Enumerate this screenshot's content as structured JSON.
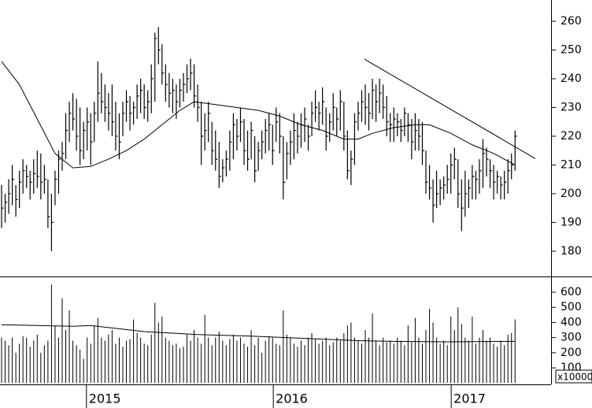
{
  "chart_data": [
    {
      "type": "ohlc",
      "high": [
        203,
        200,
        205,
        210,
        203,
        208,
        212,
        210,
        208,
        212,
        215,
        214,
        210,
        205,
        200,
        208,
        215,
        218,
        228,
        232,
        235,
        233,
        230,
        225,
        230,
        228,
        232,
        246,
        242,
        238,
        235,
        238,
        232,
        228,
        232,
        236,
        234,
        232,
        238,
        240,
        238,
        236,
        245,
        256,
        258,
        252,
        245,
        242,
        240,
        238,
        240,
        242,
        245,
        247,
        245,
        238,
        232,
        228,
        232,
        225,
        222,
        218,
        212,
        215,
        222,
        228,
        226,
        230,
        226,
        222,
        225,
        220,
        218,
        222,
        226,
        228,
        224,
        230,
        228,
        220,
        218,
        222,
        228,
        225,
        228,
        230,
        224,
        232,
        236,
        232,
        237,
        230,
        228,
        235,
        230,
        236,
        232,
        222,
        215,
        228,
        232,
        236,
        238,
        235,
        240,
        238,
        240,
        238,
        234,
        228,
        230,
        228,
        226,
        230,
        228,
        226,
        228,
        226,
        225,
        215,
        210,
        205,
        208,
        205,
        206,
        210,
        214,
        216,
        212,
        205,
        208,
        205,
        210,
        208,
        212,
        219,
        216,
        212,
        210,
        208,
        206,
        208,
        212,
        214,
        222
      ],
      "low": [
        188,
        190,
        193,
        196,
        192,
        195,
        200,
        202,
        198,
        200,
        202,
        198,
        200,
        188,
        180,
        196,
        200,
        208,
        212,
        218,
        222,
        215,
        210,
        212,
        215,
        210,
        218,
        225,
        228,
        225,
        222,
        220,
        215,
        212,
        220,
        225,
        222,
        224,
        226,
        228,
        226,
        225,
        228,
        232,
        245,
        238,
        232,
        230,
        228,
        226,
        230,
        232,
        235,
        236,
        230,
        225,
        210,
        215,
        218,
        210,
        208,
        202,
        204,
        206,
        208,
        212,
        215,
        218,
        210,
        208,
        212,
        204,
        208,
        212,
        214,
        215,
        210,
        218,
        214,
        198,
        205,
        210,
        212,
        214,
        216,
        218,
        215,
        220,
        225,
        222,
        224,
        215,
        218,
        222,
        220,
        222,
        215,
        205,
        203,
        210,
        222,
        225,
        224,
        222,
        226,
        225,
        228,
        226,
        220,
        218,
        218,
        220,
        218,
        220,
        218,
        212,
        215,
        215,
        210,
        200,
        198,
        190,
        195,
        196,
        198,
        200,
        200,
        205,
        195,
        187,
        192,
        195,
        198,
        198,
        200,
        202,
        206,
        202,
        198,
        200,
        198,
        198,
        200,
        205,
        208
      ],
      "close": [
        195,
        197,
        200,
        205,
        198,
        204,
        208,
        206,
        204,
        207,
        206,
        204,
        205,
        192,
        190,
        205,
        212,
        214,
        222,
        228,
        226,
        220,
        215,
        222,
        225,
        218,
        228,
        235,
        232,
        230,
        228,
        225,
        220,
        218,
        228,
        232,
        228,
        230,
        234,
        236,
        230,
        232,
        240,
        254,
        250,
        242,
        238,
        235,
        236,
        232,
        236,
        238,
        240,
        242,
        234,
        230,
        220,
        222,
        228,
        215,
        212,
        206,
        209,
        212,
        218,
        224,
        220,
        225,
        215,
        212,
        222,
        208,
        215,
        218,
        222,
        224,
        215,
        225,
        220,
        204,
        214,
        218,
        222,
        220,
        224,
        226,
        220,
        228,
        230,
        228,
        232,
        220,
        225,
        230,
        226,
        232,
        220,
        208,
        212,
        225,
        228,
        232,
        230,
        228,
        236,
        232,
        235,
        230,
        225,
        224,
        226,
        225,
        222,
        228,
        224,
        218,
        222,
        220,
        215,
        204,
        202,
        196,
        200,
        202,
        203,
        205,
        210,
        212,
        200,
        195,
        200,
        202,
        206,
        205,
        208,
        214,
        212,
        208,
        204,
        206,
        203,
        204,
        208,
        210,
        220
      ],
      "xlim": [
        -0.44,
        154.1
      ],
      "ylim": [
        171.2,
        267.4
      ],
      "yticks": [
        180,
        190,
        200,
        210,
        220,
        230,
        240,
        250,
        260
      ],
      "moving_average": {
        "x": [
          0,
          5,
          10,
          15,
          20,
          25,
          30,
          35,
          40,
          45,
          50,
          54,
          60,
          66,
          72,
          78,
          84,
          90,
          96,
          100,
          104,
          110,
          116,
          120,
          126,
          132,
          138,
          144
        ],
        "values": [
          246,
          238,
          226,
          214,
          209,
          209.5,
          212,
          215,
          219,
          224,
          229,
          232,
          231,
          230,
          229,
          227,
          224,
          222,
          219,
          219,
          221,
          223,
          224,
          224,
          221,
          217,
          214,
          210
        ]
      },
      "trendline": {
        "x": [
          101.8,
          149.7
        ],
        "values": [
          246.8,
          212.2
        ]
      }
    },
    {
      "type": "bar",
      "values": [
        300,
        280,
        250,
        300,
        200,
        260,
        310,
        300,
        240,
        280,
        320,
        200,
        250,
        280,
        650,
        380,
        300,
        560,
        350,
        480,
        280,
        250,
        220,
        160,
        300,
        260,
        380,
        430,
        300,
        280,
        320,
        350,
        260,
        300,
        240,
        280,
        290,
        420,
        330,
        300,
        260,
        250,
        320,
        530,
        400,
        440,
        300,
        280,
        250,
        260,
        230,
        240,
        320,
        280,
        350,
        300,
        260,
        450,
        300,
        250,
        300,
        340,
        280,
        250,
        290,
        320,
        280,
        300,
        260,
        240,
        350,
        250,
        300,
        200,
        280,
        310,
        300,
        260,
        250,
        480,
        320,
        300,
        260,
        240,
        280,
        250,
        300,
        330,
        290,
        260,
        280,
        300,
        250,
        270,
        300,
        280,
        330,
        380,
        400,
        300,
        280,
        260,
        350,
        300,
        460,
        280,
        250,
        300,
        270,
        280,
        260,
        300,
        280,
        250,
        380,
        270,
        430,
        300,
        260,
        350,
        490,
        400,
        300,
        260,
        280,
        250,
        440,
        350,
        500,
        390,
        300,
        280,
        440,
        260,
        300,
        350,
        280,
        300,
        260,
        240,
        280,
        250,
        320,
        330,
        420
      ],
      "xlim": [
        -0.44,
        154.1
      ],
      "ylim": [
        -9,
        699
      ],
      "yticks": [
        100,
        200,
        300,
        400,
        500,
        600
      ],
      "unit_label": "x10000",
      "xticks": [
        {
          "value": 23.8,
          "label": "2015"
        },
        {
          "value": 76.2,
          "label": "2016"
        },
        {
          "value": 126.1,
          "label": "2017"
        }
      ],
      "moving_average": {
        "x": [
          0,
          20,
          25,
          40,
          55,
          70,
          85,
          100,
          110,
          125,
          144
        ],
        "values": [
          385,
          375,
          380,
          340,
          320,
          310,
          295,
          280,
          275,
          272,
          275
        ]
      }
    }
  ]
}
